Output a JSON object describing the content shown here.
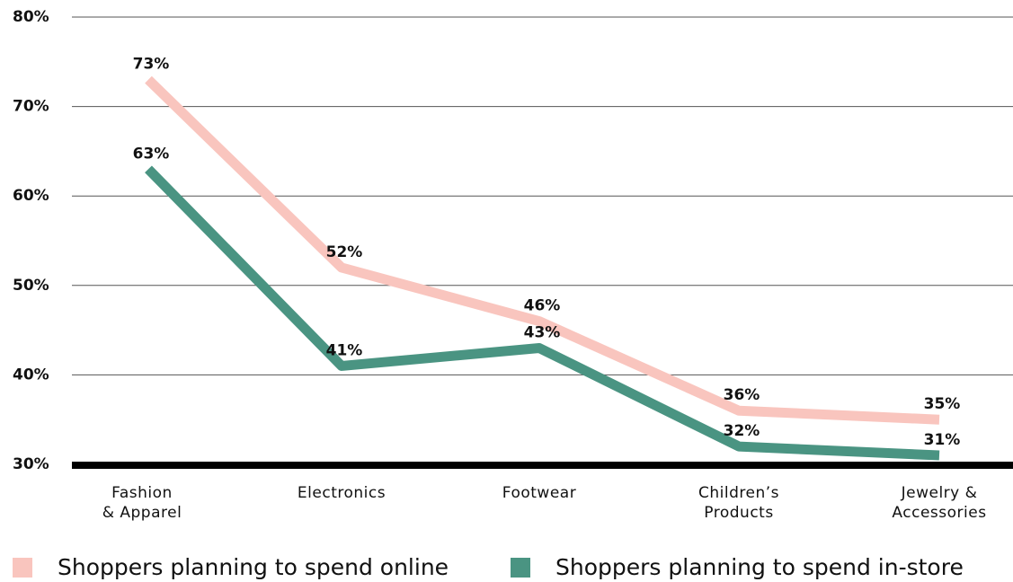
{
  "chart_data": {
    "type": "line",
    "categories": [
      "Fashion\n& Apparel",
      "Electronics",
      "Footwear",
      "Children’s\nProducts",
      "Jewelry &\nAccessories"
    ],
    "series": [
      {
        "name": "Shoppers planning to spend online",
        "color": "#f9c5be",
        "values": [
          73,
          52,
          46,
          36,
          35
        ],
        "value_labels": [
          "73%",
          "52%",
          "46%",
          "36%",
          "35%"
        ]
      },
      {
        "name": "Shoppers planning to spend in-store",
        "color": "#4a9482",
        "values": [
          63,
          41,
          43,
          32,
          31
        ],
        "value_labels": [
          "63%",
          "41%",
          "43%",
          "32%",
          "31%"
        ]
      }
    ],
    "ylim": [
      30,
      80
    ],
    "yticks": [
      {
        "value": 30,
        "label": "30%"
      },
      {
        "value": 40,
        "label": "40%"
      },
      {
        "value": 50,
        "label": "50%"
      },
      {
        "value": 60,
        "label": "60%"
      },
      {
        "value": 70,
        "label": "70%"
      },
      {
        "value": 80,
        "label": "80%"
      }
    ],
    "grid": true,
    "legend": "bottom"
  }
}
